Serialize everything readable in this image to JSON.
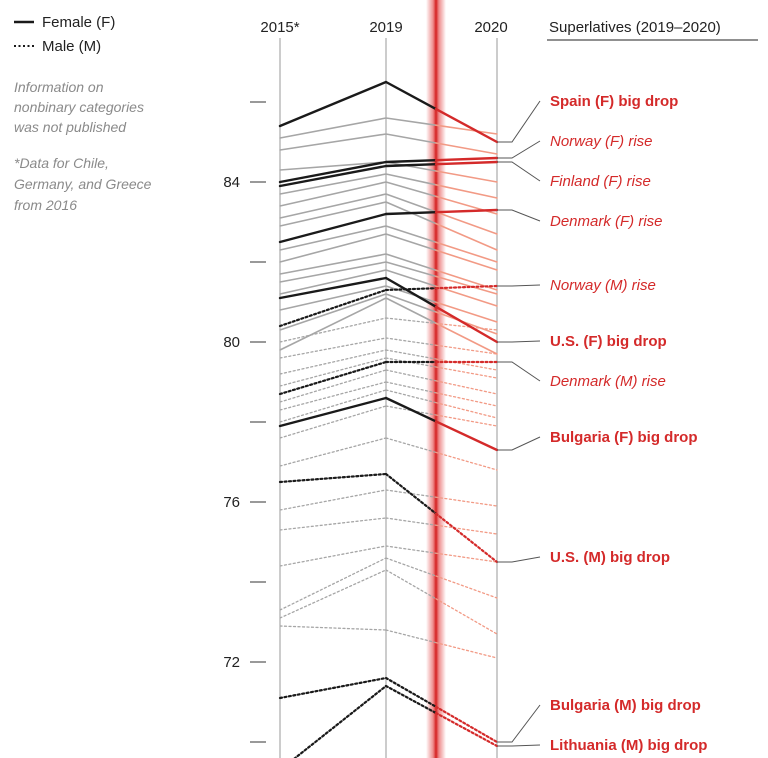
{
  "chart_data": {
    "type": "line",
    "x": [
      "2015*",
      "2019",
      "2020"
    ],
    "ylim": [
      69.6,
      87.6
    ],
    "yticks": [
      70,
      72,
      74,
      76,
      78,
      80,
      82,
      84,
      86
    ],
    "ytick_labels": {
      "72": "72",
      "76": "76",
      "80": "80",
      "84": "84"
    },
    "legend": [
      {
        "label": "Female (F)",
        "style": "solid"
      },
      {
        "label": "Male (M)",
        "style": "dotted"
      }
    ],
    "notes": [
      "Information on",
      "nonbinary categories",
      "was not published",
      "*Data for Chile,",
      "Germany, and Greece",
      "from 2016"
    ],
    "superlatives_title": "Superlatives (2019–2020)",
    "highlight_color": "#d42a2a",
    "highlight_light": "#f29a85",
    "gray": "#a6a6a6",
    "black": "#1a1a1a",
    "series": [
      {
        "name": "Spain (F)",
        "sex": "F",
        "values": [
          85.4,
          86.5,
          85.0
        ],
        "highlight": true
      },
      {
        "name": "Norway (F)",
        "sex": "F",
        "values": [
          84.0,
          84.5,
          84.6
        ],
        "highlight": true
      },
      {
        "name": "Finland (F)",
        "sex": "F",
        "values": [
          83.9,
          84.4,
          84.5
        ],
        "highlight": true
      },
      {
        "name": "Denmark (F)",
        "sex": "F",
        "values": [
          82.5,
          83.2,
          83.3
        ],
        "highlight": true
      },
      {
        "name": "U.S. (F)",
        "sex": "F",
        "values": [
          81.1,
          81.6,
          80.0
        ],
        "highlight": true
      },
      {
        "name": "Bulgaria (F)",
        "sex": "F",
        "values": [
          77.9,
          78.6,
          77.3
        ],
        "highlight": true
      },
      {
        "name": "Norway (M)",
        "sex": "M",
        "values": [
          80.4,
          81.3,
          81.4
        ],
        "highlight": true
      },
      {
        "name": "Denmark (M)",
        "sex": "M",
        "values": [
          78.7,
          79.5,
          79.5
        ],
        "highlight": true
      },
      {
        "name": "U.S. (M)",
        "sex": "M",
        "values": [
          76.5,
          76.7,
          74.5
        ],
        "highlight": true
      },
      {
        "name": "Bulgaria (M)",
        "sex": "M",
        "values": [
          71.1,
          71.6,
          70.0
        ],
        "highlight": true
      },
      {
        "name": "Lithuania (M)",
        "sex": "M",
        "values": [
          69.3,
          71.4,
          69.9
        ],
        "highlight": true
      },
      {
        "sex": "F",
        "values": [
          85.1,
          85.6,
          85.2
        ]
      },
      {
        "sex": "F",
        "values": [
          84.8,
          85.2,
          84.7
        ]
      },
      {
        "sex": "F",
        "values": [
          84.3,
          84.5,
          84.0
        ]
      },
      {
        "sex": "F",
        "values": [
          83.7,
          84.2,
          83.6
        ]
      },
      {
        "sex": "F",
        "values": [
          83.4,
          84.0,
          83.2
        ]
      },
      {
        "sex": "F",
        "values": [
          83.1,
          83.7,
          82.7
        ]
      },
      {
        "sex": "F",
        "values": [
          82.9,
          83.5,
          82.3
        ]
      },
      {
        "sex": "F",
        "values": [
          82.3,
          82.9,
          82.0
        ]
      },
      {
        "sex": "F",
        "values": [
          82.0,
          82.7,
          81.8
        ]
      },
      {
        "sex": "F",
        "values": [
          81.7,
          82.2,
          81.3
        ]
      },
      {
        "sex": "F",
        "values": [
          81.5,
          82.0,
          81.2
        ]
      },
      {
        "sex": "F",
        "values": [
          81.2,
          81.8,
          80.9
        ]
      },
      {
        "sex": "F",
        "values": [
          80.8,
          81.4,
          80.5
        ]
      },
      {
        "sex": "F",
        "values": [
          80.3,
          81.2,
          80.2
        ]
      },
      {
        "sex": "F",
        "values": [
          79.8,
          81.1,
          79.7
        ]
      },
      {
        "sex": "M",
        "values": [
          80.0,
          80.6,
          80.3
        ]
      },
      {
        "sex": "M",
        "values": [
          79.6,
          80.1,
          79.7
        ]
      },
      {
        "sex": "M",
        "values": [
          79.2,
          79.8,
          79.3
        ]
      },
      {
        "sex": "M",
        "values": [
          78.9,
          79.6,
          79.1
        ]
      },
      {
        "sex": "M",
        "values": [
          78.5,
          79.3,
          78.7
        ]
      },
      {
        "sex": "M",
        "values": [
          78.3,
          79.0,
          78.4
        ]
      },
      {
        "sex": "M",
        "values": [
          78.0,
          78.8,
          78.1
        ]
      },
      {
        "sex": "M",
        "values": [
          77.6,
          78.4,
          77.9
        ]
      },
      {
        "sex": "M",
        "values": [
          76.9,
          77.6,
          76.8
        ]
      },
      {
        "sex": "M",
        "values": [
          75.8,
          76.3,
          75.9
        ]
      },
      {
        "sex": "M",
        "values": [
          75.3,
          75.6,
          75.2
        ]
      },
      {
        "sex": "M",
        "values": [
          74.4,
          74.9,
          74.5
        ]
      },
      {
        "sex": "M",
        "values": [
          73.3,
          74.6,
          73.6
        ]
      },
      {
        "sex": "M",
        "values": [
          73.1,
          74.3,
          72.7
        ]
      },
      {
        "sex": "M",
        "values": [
          72.9,
          72.8,
          72.1
        ]
      }
    ],
    "annotations": [
      {
        "text": "Spain (F) big drop",
        "style": "bold",
        "y": 85.9,
        "target": 85.0
      },
      {
        "text": "Norway (F) rise",
        "style": "italic",
        "y": 84.9,
        "target": 84.6
      },
      {
        "text": "Finland (F) rise",
        "style": "italic",
        "y": 83.9,
        "target": 84.5
      },
      {
        "text": "Denmark (F) rise",
        "style": "italic",
        "y": 82.9,
        "target": 83.3
      },
      {
        "text": "Norway (M) rise",
        "style": "italic",
        "y": 81.3,
        "target": 81.4
      },
      {
        "text": "U.S. (F) big drop",
        "style": "bold",
        "y": 79.9,
        "target": 80.0
      },
      {
        "text": "Denmark (M) rise",
        "style": "italic",
        "y": 78.9,
        "target": 79.5
      },
      {
        "text": "Bulgaria (F) big drop",
        "style": "bold",
        "y": 77.5,
        "target": 77.3
      },
      {
        "text": "U.S. (M) big drop",
        "style": "bold",
        "y": 74.5,
        "target": 74.5
      },
      {
        "text": "Bulgaria (M) big drop",
        "style": "bold",
        "y": 70.8,
        "target": 70.0
      },
      {
        "text": "Lithuania (M) big drop",
        "style": "bold",
        "y": 69.8,
        "target": 69.9
      }
    ]
  }
}
